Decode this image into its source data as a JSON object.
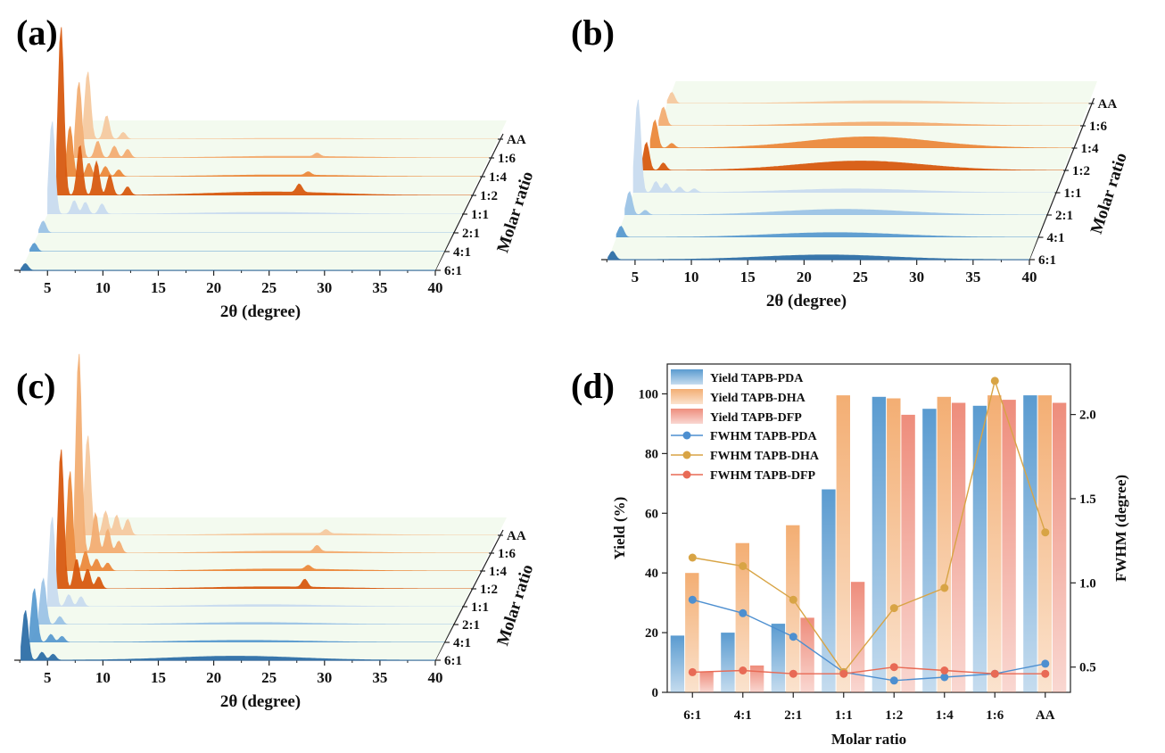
{
  "colors": {
    "blue_dark": "#2f6fa8",
    "blue_mid": "#5a9bd0",
    "blue_light": "#9cc4e6",
    "blue_pale": "#c9dcf0",
    "orange_dark": "#d85a10",
    "orange_mid": "#ec8a3c",
    "orange_light": "#f3ae73",
    "orange_pale": "#f6caa0",
    "salmon": "#ee8d7c",
    "gold": "#d8a445",
    "slab": "#f3faef"
  },
  "chart_data": [
    {
      "panel": "(a)",
      "type": "area",
      "xlabel": "2θ (degree)",
      "ylabel": "Molar ratio",
      "xlim": [
        2,
        40
      ],
      "xticks": [
        5,
        10,
        15,
        20,
        25,
        30,
        35,
        40
      ],
      "series": [
        {
          "name": "6:1",
          "peaks": [
            [
              3.0,
              0.04
            ]
          ],
          "hump": 0.0
        },
        {
          "name": "4:1",
          "peaks": [
            [
              3.0,
              0.05
            ]
          ],
          "hump": 0.0
        },
        {
          "name": "2:1",
          "peaks": [
            [
              3.0,
              0.07
            ]
          ],
          "hump": 0.0
        },
        {
          "name": "1:1",
          "peaks": [
            [
              3.0,
              0.55
            ],
            [
              5.0,
              0.08
            ],
            [
              6.0,
              0.07
            ],
            [
              7.5,
              0.06
            ]
          ],
          "hump": 0.01
        },
        {
          "name": "1:2",
          "peaks": [
            [
              3.0,
              1.0
            ],
            [
              4.7,
              0.3
            ],
            [
              6.2,
              0.2
            ],
            [
              7.4,
              0.12
            ],
            [
              9.0,
              0.05
            ],
            [
              24.5,
              0.05
            ]
          ],
          "hump": 0.02
        },
        {
          "name": "1:4",
          "peaks": [
            [
              3.0,
              0.3
            ],
            [
              4.7,
              0.08
            ],
            [
              6.2,
              0.06
            ],
            [
              7.4,
              0.04
            ],
            [
              24.5,
              0.02
            ]
          ],
          "hump": 0.01
        },
        {
          "name": "1:6",
          "peaks": [
            [
              3.0,
              0.45
            ],
            [
              4.7,
              0.1
            ],
            [
              6.2,
              0.07
            ],
            [
              7.4,
              0.05
            ],
            [
              24.5,
              0.02
            ]
          ],
          "hump": 0.01
        },
        {
          "name": "AA",
          "peaks": [
            [
              3.0,
              0.4
            ],
            [
              4.7,
              0.14
            ],
            [
              6.2,
              0.04
            ]
          ],
          "hump": 0.005
        }
      ]
    },
    {
      "panel": "(b)",
      "type": "area",
      "xlabel": "2θ (degree)",
      "ylabel": "Molar ratio",
      "xlim": [
        2,
        40
      ],
      "xticks": [
        5,
        10,
        15,
        20,
        25,
        30,
        35,
        40
      ],
      "series": [
        {
          "name": "6:1",
          "peaks": [
            [
              3.0,
              0.09
            ]
          ],
          "hump": 0.05
        },
        {
          "name": "4:1",
          "peaks": [
            [
              3.0,
              0.12
            ]
          ],
          "hump": 0.05
        },
        {
          "name": "2:1",
          "peaks": [
            [
              3.0,
              0.25
            ],
            [
              4.4,
              0.05
            ]
          ],
          "hump": 0.06
        },
        {
          "name": "1:1",
          "peaks": [
            [
              3.0,
              1.0
            ],
            [
              4.6,
              0.12
            ],
            [
              5.5,
              0.1
            ],
            [
              6.7,
              0.06
            ],
            [
              8.0,
              0.04
            ]
          ],
          "hump": 0.04
        },
        {
          "name": "1:2",
          "peaks": [
            [
              3.0,
              0.3
            ],
            [
              4.5,
              0.08
            ]
          ],
          "hump": 0.1
        },
        {
          "name": "1:4",
          "peaks": [
            [
              3.0,
              0.3
            ],
            [
              4.5,
              0.05
            ]
          ],
          "hump": 0.12
        },
        {
          "name": "1:6",
          "peaks": [
            [
              3.0,
              0.2
            ]
          ],
          "hump": 0.04
        },
        {
          "name": "AA",
          "peaks": [
            [
              3.0,
              0.12
            ]
          ],
          "hump": 0.03
        }
      ]
    },
    {
      "panel": "(c)",
      "type": "area",
      "xlabel": "2θ (degree)",
      "ylabel": "Molar ratio",
      "xlim": [
        2,
        40
      ],
      "xticks": [
        5,
        10,
        15,
        20,
        25,
        30,
        35,
        40
      ],
      "series": [
        {
          "name": "6:1",
          "peaks": [
            [
              3.0,
              0.25
            ],
            [
              4.5,
              0.04
            ],
            [
              5.5,
              0.03
            ]
          ],
          "hump": 0.02
        },
        {
          "name": "4:1",
          "peaks": [
            [
              3.0,
              0.27
            ],
            [
              4.5,
              0.04
            ],
            [
              5.5,
              0.03
            ]
          ],
          "hump": 0.01
        },
        {
          "name": "2:1",
          "peaks": [
            [
              3.0,
              0.23
            ],
            [
              4.5,
              0.04
            ]
          ],
          "hump": 0.01
        },
        {
          "name": "1:1",
          "peaks": [
            [
              3.0,
              0.45
            ],
            [
              4.5,
              0.06
            ],
            [
              5.6,
              0.05
            ]
          ],
          "hump": 0.01
        },
        {
          "name": "1:2",
          "peaks": [
            [
              3.0,
              0.7
            ],
            [
              4.4,
              0.15
            ],
            [
              5.4,
              0.1
            ],
            [
              6.4,
              0.06
            ],
            [
              25.0,
              0.04
            ]
          ],
          "hump": 0.01
        },
        {
          "name": "1:4",
          "peaks": [
            [
              3.0,
              0.5
            ],
            [
              4.4,
              0.1
            ],
            [
              5.4,
              0.06
            ],
            [
              6.4,
              0.04
            ],
            [
              24.5,
              0.02
            ]
          ],
          "hump": 0.01
        },
        {
          "name": "1:6",
          "peaks": [
            [
              3.0,
              1.0
            ],
            [
              4.5,
              0.2
            ],
            [
              5.6,
              0.12
            ],
            [
              6.6,
              0.06
            ],
            [
              24.5,
              0.03
            ]
          ],
          "hump": 0.01
        },
        {
          "name": "AA",
          "peaks": [
            [
              3.0,
              0.5
            ],
            [
              4.6,
              0.12
            ],
            [
              5.6,
              0.1
            ],
            [
              6.6,
              0.08
            ],
            [
              24.5,
              0.02
            ]
          ],
          "hump": 0.01
        }
      ]
    },
    {
      "panel": "(d)",
      "type": "bar",
      "xlabel": "Molar ratio",
      "ylabel": "Yield (%)",
      "y2label": "FWHM (degree)",
      "categories": [
        "6:1",
        "4:1",
        "2:1",
        "1:1",
        "1:2",
        "1:4",
        "1:6",
        "AA"
      ],
      "ylim": [
        0,
        110
      ],
      "yticks": [
        0,
        20,
        40,
        60,
        80,
        100
      ],
      "y2lim": [
        0.35,
        2.3
      ],
      "y2ticks": [
        0.5,
        1.0,
        1.5,
        2.0
      ],
      "bars": [
        {
          "name": "Yield TAPB-PDA",
          "color": "#5a9bd0",
          "values": [
            19,
            20,
            23,
            68,
            99,
            95,
            96,
            99.5
          ]
        },
        {
          "name": "Yield TAPB-DHA",
          "color": "#f3ae73",
          "values": [
            40,
            50,
            56,
            99.5,
            98.5,
            99,
            99.5,
            99.5
          ]
        },
        {
          "name": "Yield TAPB-DFP",
          "color": "#ee8d7c",
          "values": [
            7,
            9,
            25,
            37,
            93,
            97,
            98,
            97
          ]
        }
      ],
      "lines": [
        {
          "name": "FWHM TAPB-PDA",
          "color": "#4d8fd0",
          "values": [
            0.9,
            0.82,
            0.68,
            0.47,
            0.42,
            0.44,
            0.46,
            0.52
          ]
        },
        {
          "name": "FWHM TAPB-DHA",
          "color": "#d8a445",
          "values": [
            1.15,
            1.1,
            0.9,
            0.47,
            0.85,
            0.97,
            2.2,
            1.3
          ]
        },
        {
          "name": "FWHM TAPB-DFP",
          "color": "#e86a55",
          "values": [
            0.47,
            0.48,
            0.46,
            0.46,
            0.5,
            0.48,
            0.46,
            0.46
          ]
        }
      ]
    }
  ]
}
